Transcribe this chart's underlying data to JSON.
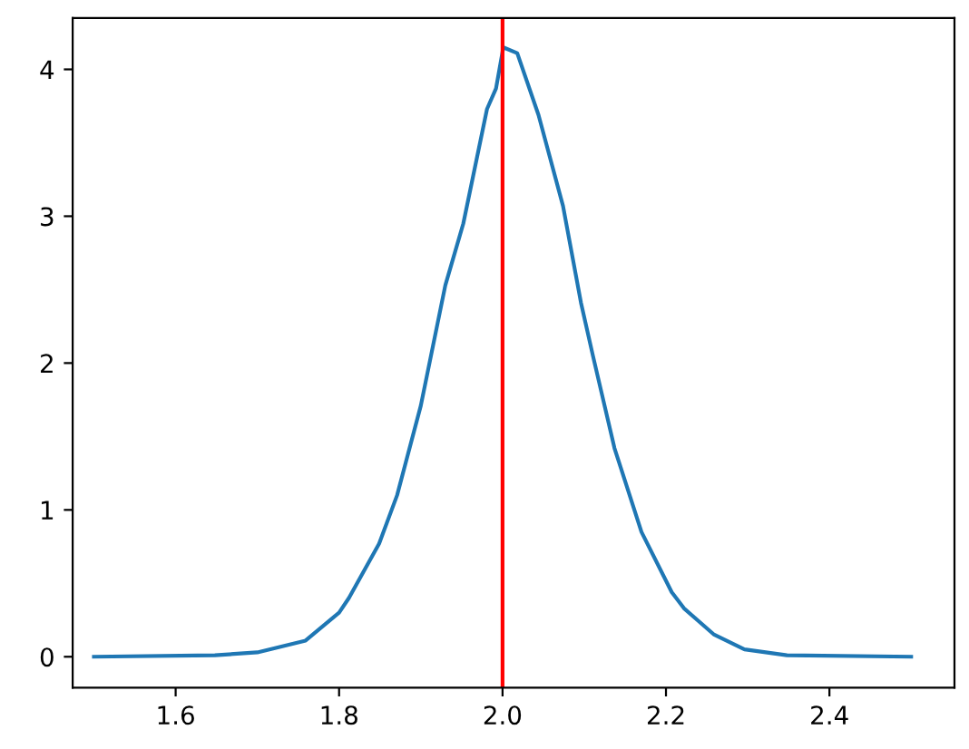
{
  "chart_data": {
    "type": "line",
    "x": [
      1.5,
      1.648,
      1.7,
      1.759,
      1.8,
      1.812,
      1.849,
      1.871,
      1.9,
      1.93,
      1.952,
      1.981,
      1.992,
      2.001,
      2.018,
      2.044,
      2.074,
      2.096,
      2.111,
      2.137,
      2.17,
      2.207,
      2.222,
      2.259,
      2.296,
      2.348,
      2.5
    ],
    "series": [
      {
        "color": "#1f77b4",
        "values": [
          0.0,
          0.01,
          0.03,
          0.11,
          0.3,
          0.4,
          0.77,
          1.1,
          1.71,
          2.53,
          2.95,
          3.73,
          3.87,
          4.15,
          4.11,
          3.69,
          3.07,
          2.41,
          2.04,
          1.42,
          0.85,
          0.44,
          0.33,
          0.15,
          0.05,
          0.01,
          0.0
        ]
      }
    ],
    "xlim": [
      1.474,
      2.553
    ],
    "xticks": [
      1.6,
      1.8,
      {
        "value": 2.0,
        "label": "2.0"
      },
      2.2,
      2.4
    ],
    "ylim": [
      -0.21,
      4.35
    ],
    "yticks": [
      0,
      1,
      2,
      3,
      4
    ],
    "ref_lines": [
      {
        "axis": "x",
        "value": 2.0,
        "color": "#ff0000",
        "line_style": "solid"
      }
    ],
    "grid": false,
    "legend": false
  }
}
